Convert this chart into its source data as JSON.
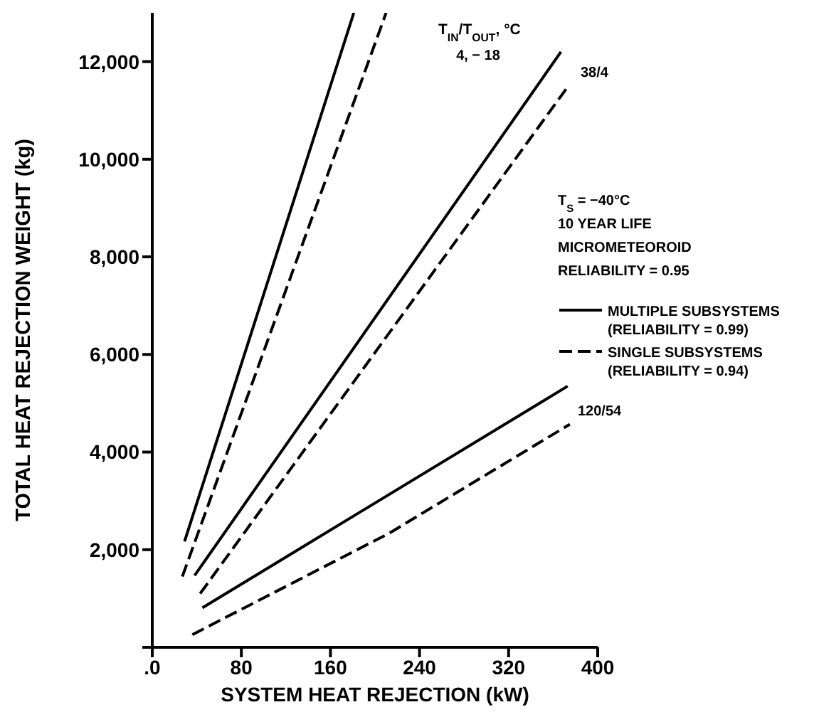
{
  "chart_data": {
    "type": "line",
    "xlabel": "SYSTEM HEAT REJECTION (kW)",
    "ylabel": "TOTAL HEAT REJECTION WEIGHT (kg)",
    "xlim": [
      0,
      400
    ],
    "xticks": [
      {
        "value": 0,
        "label": ".0"
      },
      80,
      160,
      240,
      320,
      400
    ],
    "ylim": [
      0,
      13000
    ],
    "yticks": [
      {
        "value": 0,
        "label": null
      },
      {
        "value": 2000,
        "label": "2,000"
      },
      {
        "value": 4000,
        "label": "4,000"
      },
      {
        "value": 6000,
        "label": "6,000"
      },
      {
        "value": 8000,
        "label": "8,000"
      },
      {
        "value": 10000,
        "label": "10,000"
      },
      {
        "value": 12000,
        "label": "12,000"
      }
    ],
    "grid": false,
    "legend": "right",
    "marker": "none",
    "series": [
      {
        "name": "MULTIPLE SUBSYSTEMS (RELIABILITY = 0.99)",
        "color": "#000000",
        "line_style": "solid",
        "x": [
          29,
          181
        ],
        "values": [
          2170,
          13000
        ]
      },
      {
        "name": "SINGLE SUBSYSTEMS (RELIABILITY = 0.94)",
        "color": "#000000",
        "line_style": "dashed",
        "x": [
          27,
          210
        ],
        "values": [
          1450,
          13000
        ]
      },
      {
        "color": "#000000",
        "line_style": "solid",
        "x": [
          38,
          367
        ],
        "values": [
          1470,
          12200
        ]
      },
      {
        "color": "#000000",
        "line_style": "dashed",
        "x": [
          43,
          372
        ],
        "values": [
          1100,
          11450
        ]
      },
      {
        "color": "#000000",
        "line_style": "solid",
        "x": [
          45,
          373
        ],
        "values": [
          810,
          5350
        ]
      },
      {
        "color": "#000000",
        "line_style": "dashed",
        "x": [
          36,
          213,
          375
        ],
        "values": [
          260,
          2340,
          4570
        ]
      }
    ],
    "annotations": [
      "T$_{IN}$/T$_{OUT}$, °C",
      "4, − 18",
      "38/4",
      "120/54",
      "T$_{S}$ = −40°C",
      "10 YEAR LIFE",
      "MICROMETEOROID",
      "RELIABILITY = 0.95"
    ]
  }
}
